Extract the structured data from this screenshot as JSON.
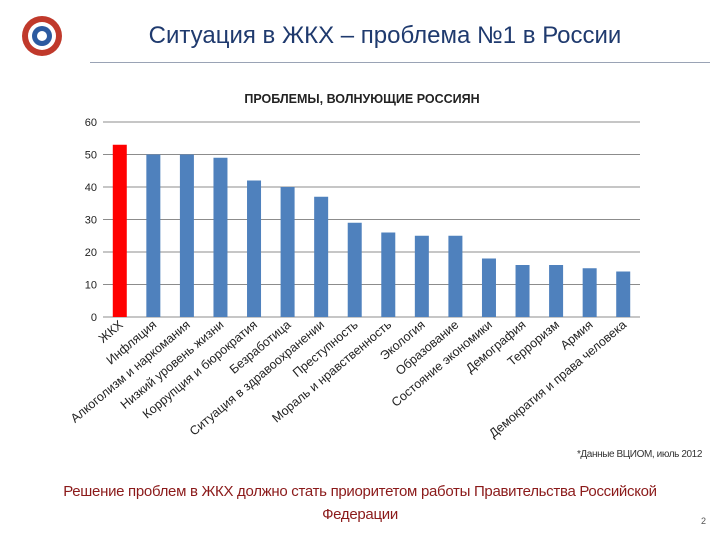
{
  "slide": {
    "title": "Ситуация в ЖКХ – проблема №1 в России",
    "source_note": "*Данные ВЦИОМ, июль 2012",
    "conclusion": "Решение проблем в ЖКХ должно стать приоритетом работы Правительства Российской Федерации",
    "page_number": "2"
  },
  "logo": {
    "icon": "ring-emblem-icon",
    "colors": [
      "#c0392b",
      "#2c5aa0",
      "#ffffff"
    ]
  },
  "chart_data": {
    "type": "bar",
    "title": "ПРОБЛЕМЫ, ВОЛНУЮЩИЕ РОССИЯН",
    "categories": [
      "ЖКХ",
      "Инфляция",
      "Алкоголизм и наркомания",
      "Низкий уровень жизни",
      "Коррупция и бюрократия",
      "Безработица",
      "Ситуация в здравоохранении",
      "Преступность",
      "Мораль и нравственность",
      "Экология",
      "Образование",
      "Состояние экономики",
      "Демография",
      "Терроризм",
      "Армия",
      "Демократия и права человека"
    ],
    "values": [
      53,
      50,
      50,
      49,
      42,
      40,
      37,
      29,
      26,
      25,
      25,
      18,
      16,
      16,
      15,
      14
    ],
    "highlight_index": 0,
    "colors": {
      "bar": "#4f81bd",
      "highlight": "#ff0000",
      "grid": "#8c8c8c"
    },
    "ylim": [
      0,
      60
    ],
    "yticks": [
      0,
      10,
      20,
      30,
      40,
      50,
      60
    ],
    "grid": true,
    "legend": "none"
  }
}
